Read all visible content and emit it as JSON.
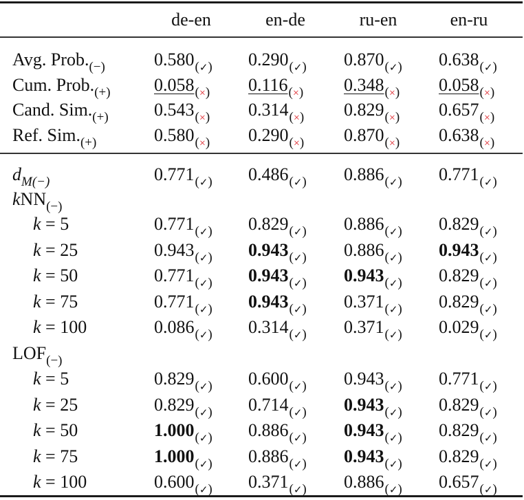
{
  "table": {
    "columns": [
      "de-en",
      "en-de",
      "ru-en",
      "en-ru"
    ],
    "marks": {
      "ok": "✓",
      "bad": "×",
      "ok_color": "#111111",
      "bad_color": "#e0242a"
    },
    "baseline_rows": [
      {
        "label": "Avg. Prob.",
        "dir": "(−)",
        "cells": [
          {
            "v": "0.580",
            "m": "ok"
          },
          {
            "v": "0.290",
            "m": "ok"
          },
          {
            "v": "0.870",
            "m": "ok"
          },
          {
            "v": "0.638",
            "m": "ok"
          }
        ]
      },
      {
        "label": "Cum. Prob.",
        "dir": "(+)",
        "cells": [
          {
            "v": "0.058",
            "m": "bad",
            "ul": true
          },
          {
            "v": "0.116",
            "m": "bad",
            "ul": true
          },
          {
            "v": "0.348",
            "m": "bad",
            "ul": true
          },
          {
            "v": "0.058",
            "m": "bad",
            "ul": true
          }
        ]
      },
      {
        "label": "Cand. Sim.",
        "dir": "(+)",
        "cells": [
          {
            "v": "0.543",
            "m": "bad"
          },
          {
            "v": "0.314",
            "m": "bad"
          },
          {
            "v": "0.829",
            "m": "bad"
          },
          {
            "v": "0.657",
            "m": "bad"
          }
        ]
      },
      {
        "label": "Ref. Sim.",
        "dir": "(+)",
        "cells": [
          {
            "v": "0.580",
            "m": "bad"
          },
          {
            "v": "0.290",
            "m": "bad"
          },
          {
            "v": "0.870",
            "m": "bad"
          },
          {
            "v": "0.638",
            "m": "bad"
          }
        ]
      }
    ],
    "dm_row": {
      "label_main": "d",
      "label_sub": "M(−)",
      "cells": [
        {
          "v": "0.771",
          "m": "ok"
        },
        {
          "v": "0.486",
          "m": "ok"
        },
        {
          "v": "0.886",
          "m": "ok"
        },
        {
          "v": "0.771",
          "m": "ok"
        }
      ]
    },
    "knn_group": {
      "label_k": "k",
      "label_rest": "NN",
      "dir": "(−)",
      "rows": [
        {
          "k": "k",
          "eq": " = 5",
          "cells": [
            {
              "v": "0.771",
              "m": "ok"
            },
            {
              "v": "0.829",
              "m": "ok"
            },
            {
              "v": "0.886",
              "m": "ok"
            },
            {
              "v": "0.829",
              "m": "ok"
            }
          ]
        },
        {
          "k": "k",
          "eq": " = 25",
          "cells": [
            {
              "v": "0.943",
              "m": "ok"
            },
            {
              "v": "0.943",
              "m": "ok",
              "b": true
            },
            {
              "v": "0.886",
              "m": "ok"
            },
            {
              "v": "0.943",
              "m": "ok",
              "b": true
            }
          ]
        },
        {
          "k": "k",
          "eq": " = 50",
          "cells": [
            {
              "v": "0.771",
              "m": "ok"
            },
            {
              "v": "0.943",
              "m": "ok",
              "b": true
            },
            {
              "v": "0.943",
              "m": "ok",
              "b": true
            },
            {
              "v": "0.829",
              "m": "ok"
            }
          ]
        },
        {
          "k": "k",
          "eq": " = 75",
          "cells": [
            {
              "v": "0.771",
              "m": "ok"
            },
            {
              "v": "0.943",
              "m": "ok",
              "b": true
            },
            {
              "v": "0.371",
              "m": "ok"
            },
            {
              "v": "0.829",
              "m": "ok"
            }
          ]
        },
        {
          "k": "k",
          "eq": " = 100",
          "cells": [
            {
              "v": "0.086",
              "m": "ok"
            },
            {
              "v": "0.314",
              "m": "ok"
            },
            {
              "v": "0.371",
              "m": "ok"
            },
            {
              "v": "0.029",
              "m": "ok"
            }
          ]
        }
      ]
    },
    "lof_group": {
      "label": "LOF",
      "dir": "(−)",
      "rows": [
        {
          "k": "k",
          "eq": " = 5",
          "cells": [
            {
              "v": "0.829",
              "m": "ok"
            },
            {
              "v": "0.600",
              "m": "ok"
            },
            {
              "v": "0.943",
              "m": "ok"
            },
            {
              "v": "0.771",
              "m": "ok"
            }
          ]
        },
        {
          "k": "k",
          "eq": " = 25",
          "cells": [
            {
              "v": "0.829",
              "m": "ok"
            },
            {
              "v": "0.714",
              "m": "ok"
            },
            {
              "v": "0.943",
              "m": "ok",
              "b": true
            },
            {
              "v": "0.829",
              "m": "ok"
            }
          ]
        },
        {
          "k": "k",
          "eq": " = 50",
          "cells": [
            {
              "v": "1.000",
              "m": "ok",
              "b": true
            },
            {
              "v": "0.886",
              "m": "ok"
            },
            {
              "v": "0.943",
              "m": "ok",
              "b": true
            },
            {
              "v": "0.829",
              "m": "ok"
            }
          ]
        },
        {
          "k": "k",
          "eq": " = 75",
          "cells": [
            {
              "v": "1.000",
              "m": "ok",
              "b": true
            },
            {
              "v": "0.886",
              "m": "ok"
            },
            {
              "v": "0.943",
              "m": "ok",
              "b": true
            },
            {
              "v": "0.829",
              "m": "ok"
            }
          ]
        },
        {
          "k": "k",
          "eq": " = 100",
          "cells": [
            {
              "v": "0.600",
              "m": "ok"
            },
            {
              "v": "0.371",
              "m": "ok"
            },
            {
              "v": "0.886",
              "m": "ok"
            },
            {
              "v": "0.657",
              "m": "ok"
            }
          ]
        }
      ]
    }
  }
}
